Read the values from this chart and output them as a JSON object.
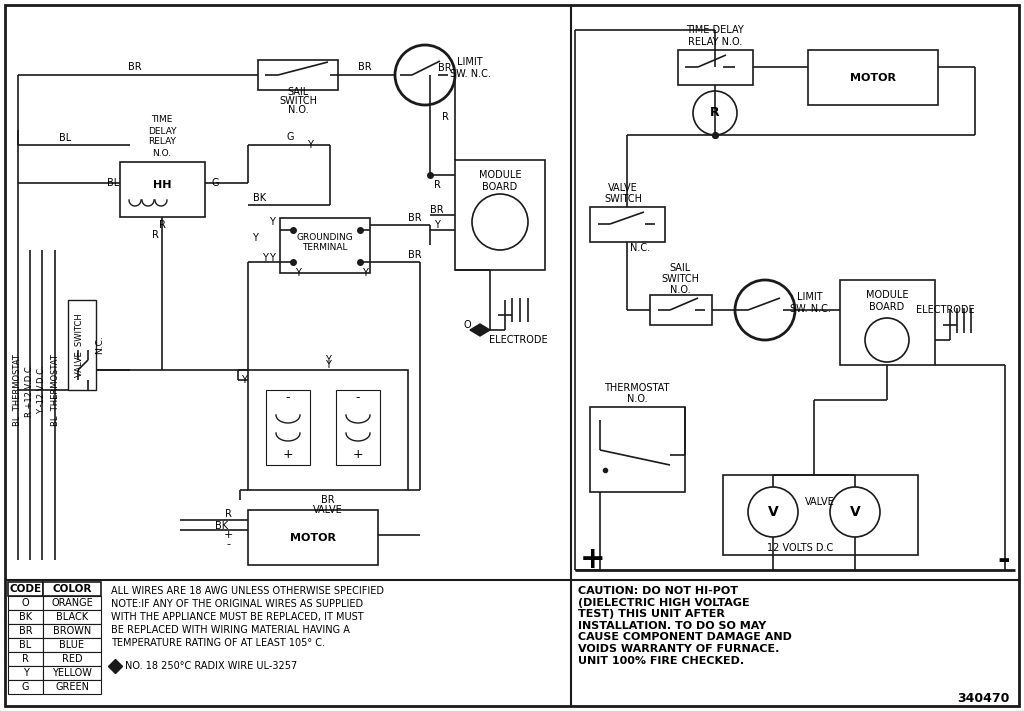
{
  "bg_color": "#ffffff",
  "line_color": "#1a1a1a",
  "fig_width": 10.24,
  "fig_height": 7.11,
  "dpi": 100,
  "color_codes": [
    [
      "CODE",
      "COLOR"
    ],
    [
      "O",
      "ORANGE"
    ],
    [
      "BK",
      "BLACK"
    ],
    [
      "BR",
      "BROWN"
    ],
    [
      "BL",
      "BLUE"
    ],
    [
      "R",
      "RED"
    ],
    [
      "Y",
      "YELLOW"
    ],
    [
      "G",
      "GREEN"
    ]
  ],
  "note_line1": "ALL WIRES ARE 18 AWG UNLESS OTHERWISE SPECIFIED",
  "note_line2": "NOTE:IF ANY OF THE ORIGINAL WIRES AS SUPPLIED",
  "note_line3": "WITH THE APPLIANCE MUST BE REPLACED, IT MUST",
  "note_line4": "BE REPLACED WITH WIRING MATERIAL HAVING A",
  "note_line5": "TEMPERATURE RATING OF AT LEAST 105° C.",
  "radix_text": "NO. 18 250°C RADIX WIRE UL-3257",
  "caution_text": "CAUTION: DO NOT HI-POT\n(DIELECTRIC HIGH VOLTAGE\nTEST) THIS UNIT AFTER\nINSTALLATION. TO DO SO MAY\nCAUSE COMPONENT DAMAGE AND\nVOIDS WARRANTY OF FURNACE.\nUNIT 100% FIRE CHECKED.",
  "doc_number": "340470"
}
